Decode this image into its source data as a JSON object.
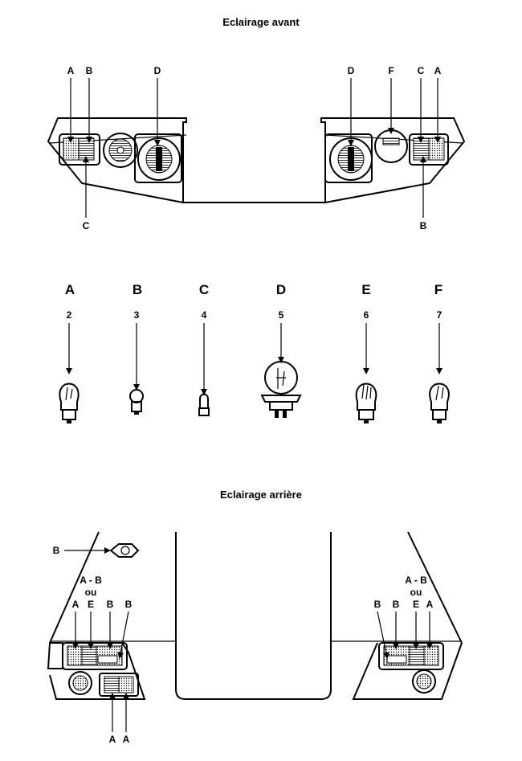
{
  "front": {
    "title": "Eclairage avant",
    "labels_top_left": [
      "A",
      "B",
      "D"
    ],
    "labels_top_right": [
      "D",
      "F",
      "C",
      "A"
    ],
    "label_bottom_left": "C",
    "label_bottom_right": "B"
  },
  "bulbs": [
    {
      "letter": "A",
      "number": "2"
    },
    {
      "letter": "B",
      "number": "3"
    },
    {
      "letter": "C",
      "number": "4"
    },
    {
      "letter": "D",
      "number": "5"
    },
    {
      "letter": "E",
      "number": "6"
    },
    {
      "letter": "F",
      "number": "7"
    }
  ],
  "rear": {
    "title": "Eclairage arrière",
    "plate_label": "B",
    "left_group_line1": "A - B",
    "left_group_line2": "ou",
    "left_labels": [
      "A",
      "E",
      "B",
      "B"
    ],
    "right_group_line1": "A - B",
    "right_group_line2": "ou",
    "right_labels": [
      "B",
      "B",
      "E",
      "A"
    ],
    "bottom_labels": [
      "A",
      "A"
    ]
  }
}
